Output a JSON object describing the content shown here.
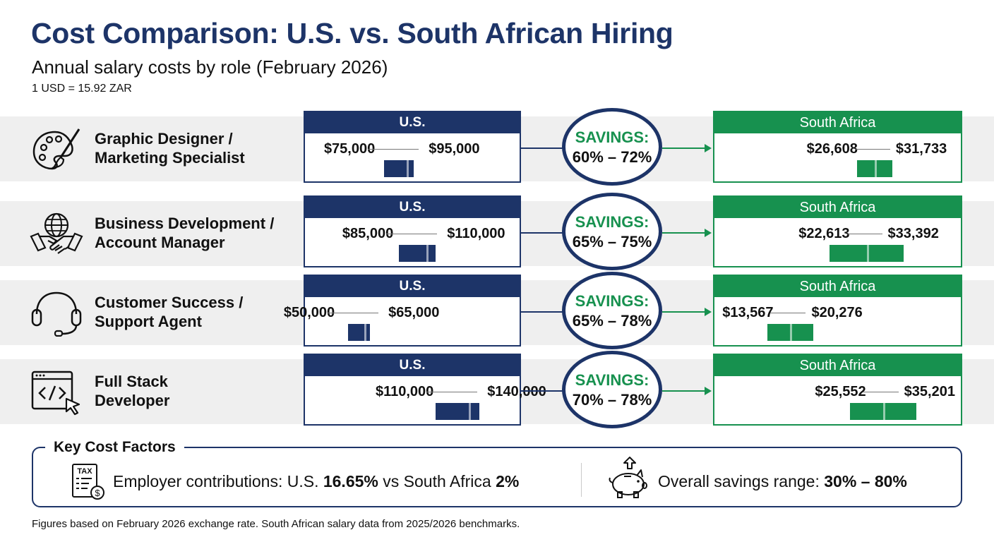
{
  "title": "Cost Comparison: U.S. vs. South African Hiring",
  "subtitle": "Annual salary costs by role (February 2026)",
  "exchange_rate": "1 USD = 15.92 ZAR",
  "us_header": "U.S.",
  "sa_header": "South Africa",
  "savings_label": "SAVINGS:",
  "colors": {
    "navy": "#1d3468",
    "green": "#17914f",
    "band": "#efefef"
  },
  "roles": [
    {
      "line1": "Graphic Designer /",
      "line2": "Marketing Specialist",
      "icon": "palette-brush-icon",
      "us_min": "$75,000",
      "us_max": "$95,000",
      "sa_min": "$26,608",
      "sa_max": "$31,733",
      "savings": "60% – 72%"
    },
    {
      "line1": "Business Development /",
      "line2": "Account Manager",
      "icon": "globe-handshake-icon",
      "us_min": "$85,000",
      "us_max": "$110,000",
      "sa_min": "$22,613",
      "sa_max": "$33,392",
      "savings": "65% – 75%"
    },
    {
      "line1": "Customer Success /",
      "line2": "Support Agent",
      "icon": "headset-icon",
      "us_min": "$50,000",
      "us_max": "$65,000",
      "sa_min": "$13,567",
      "sa_max": "$20,276",
      "savings": "65% – 78%"
    },
    {
      "line1": "Full Stack",
      "line2": "Developer",
      "icon": "code-window-cursor-icon",
      "us_min": "$110,000",
      "us_max": "$140,000",
      "sa_min": "$25,552",
      "sa_max": "$35,201",
      "savings": "70% – 78%"
    }
  ],
  "key_factors": {
    "title": "Key Cost Factors",
    "tax_icon_label": "TAX",
    "employer_prefix": "Employer contributions: U.S. ",
    "employer_us": "16.65%",
    "employer_mid": " vs South Africa ",
    "employer_sa": "2%",
    "savings_prefix": "Overall savings range: ",
    "savings_range": "30% – 80%"
  },
  "footnote": "Figures based on February 2026 exchange rate. South African salary data from 2025/2026 benchmarks.",
  "chart_data": {
    "type": "table",
    "title": "Cost Comparison: U.S. vs. South African Hiring",
    "subtitle": "Annual salary costs by role (February 2026)",
    "categories": [
      "Graphic Designer / Marketing Specialist",
      "Business Development / Account Manager",
      "Customer Success / Support Agent",
      "Full Stack Developer"
    ],
    "series": [
      {
        "name": "U.S.",
        "min": [
          75000,
          85000,
          50000,
          110000
        ],
        "max": [
          95000,
          110000,
          65000,
          140000
        ]
      },
      {
        "name": "South Africa",
        "min": [
          26608,
          22613,
          13567,
          25552
        ],
        "max": [
          31733,
          33392,
          20276,
          35201
        ]
      }
    ],
    "savings_percent": [
      [
        60,
        72
      ],
      [
        65,
        75
      ],
      [
        65,
        78
      ],
      [
        70,
        78
      ]
    ]
  }
}
